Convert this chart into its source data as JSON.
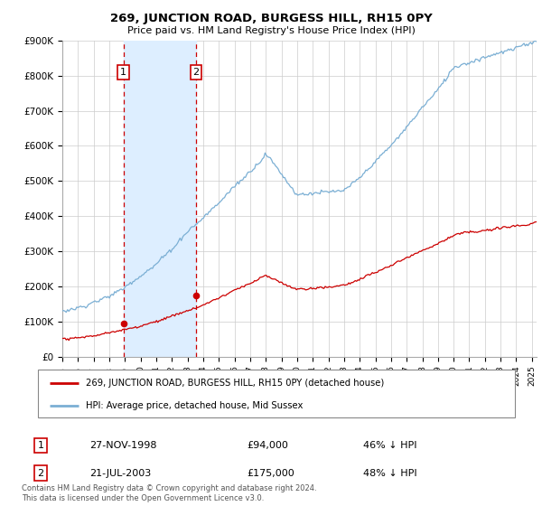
{
  "title": "269, JUNCTION ROAD, BURGESS HILL, RH15 0PY",
  "subtitle": "Price paid vs. HM Land Registry's House Price Index (HPI)",
  "legend_line1": "269, JUNCTION ROAD, BURGESS HILL, RH15 0PY (detached house)",
  "legend_line2": "HPI: Average price, detached house, Mid Sussex",
  "footer": "Contains HM Land Registry data © Crown copyright and database right 2024.\nThis data is licensed under the Open Government Licence v3.0.",
  "transaction1_date": "27-NOV-1998",
  "transaction1_price": "£94,000",
  "transaction1_hpi": "46% ↓ HPI",
  "transaction2_date": "21-JUL-2003",
  "transaction2_price": "£175,000",
  "transaction2_hpi": "48% ↓ HPI",
  "price_color": "#cc0000",
  "hpi_color": "#7bafd4",
  "shaded_color": "#ddeeff",
  "ylim": [
    0,
    900000
  ],
  "yticks": [
    0,
    100000,
    200000,
    300000,
    400000,
    500000,
    600000,
    700000,
    800000,
    900000
  ],
  "ytick_labels": [
    "£0",
    "£100K",
    "£200K",
    "£300K",
    "£400K",
    "£500K",
    "£600K",
    "£700K",
    "£800K",
    "£900K"
  ],
  "transaction1_year": 1998.9,
  "transaction1_value": 94000,
  "transaction2_year": 2003.55,
  "transaction2_value": 175000,
  "shade_x1": 1998.9,
  "shade_x2": 2003.55,
  "xmin": 1995,
  "xmax": 2025.3
}
